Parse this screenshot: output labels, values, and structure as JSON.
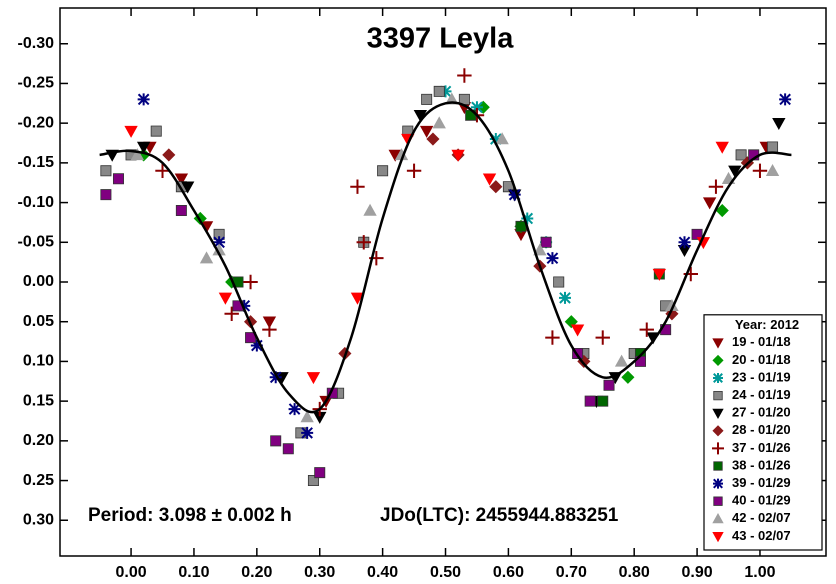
{
  "chart_data": {
    "type": "scatter",
    "title": "3397 Leyla",
    "annotations": [
      "Period: 3.098 ± 0.002 h",
      "JDo(LTC): 2455944.883251"
    ],
    "legend_title": "Year: 2012",
    "legend_position": "lower right",
    "xlim": [
      -0.113,
      1.105
    ],
    "ylim": [
      -0.345,
      0.345
    ],
    "y_inverted": true,
    "xticks": [
      {
        "value": 0,
        "label": "0.00"
      },
      {
        "value": 0.1,
        "label": "0.10"
      },
      {
        "value": 0.2,
        "label": "0.20"
      },
      {
        "value": 0.3,
        "label": "0.30"
      },
      {
        "value": 0.4,
        "label": "0.40"
      },
      {
        "value": 0.5,
        "label": "0.50"
      },
      {
        "value": 0.6,
        "label": "0.60"
      },
      {
        "value": 0.7,
        "label": "0.70"
      },
      {
        "value": 0.8,
        "label": "0.80"
      },
      {
        "value": 0.9,
        "label": "0.90"
      },
      {
        "value": 1,
        "label": "1.00"
      }
    ],
    "yticks": [
      {
        "value": -0.3,
        "label": "-0.30"
      },
      {
        "value": -0.25,
        "label": "-0.25"
      },
      {
        "value": -0.2,
        "label": "-0.20"
      },
      {
        "value": -0.15,
        "label": "-0.15"
      },
      {
        "value": -0.1,
        "label": "-0.10"
      },
      {
        "value": -0.05,
        "label": "-0.05"
      },
      {
        "value": 0,
        "label": "0.00"
      },
      {
        "value": 0.05,
        "label": "0.05"
      },
      {
        "value": 0.1,
        "label": "0.10"
      },
      {
        "value": 0.15,
        "label": "0.15"
      },
      {
        "value": 0.2,
        "label": "0.20"
      },
      {
        "value": 0.25,
        "label": "0.25"
      },
      {
        "value": 0.3,
        "label": "0.30"
      }
    ],
    "fit": {
      "color": "#000000",
      "x": [
        -0.05,
        0,
        0.05,
        0.1,
        0.15,
        0.2,
        0.25,
        0.3,
        0.35,
        0.4,
        0.45,
        0.5,
        0.55,
        0.6,
        0.65,
        0.7,
        0.75,
        0.8,
        0.85,
        0.9,
        0.95,
        1,
        1.05
      ],
      "values": [
        -0.16,
        -0.165,
        -0.15,
        -0.09,
        -0.02,
        0.07,
        0.14,
        0.16,
        0.07,
        -0.08,
        -0.19,
        -0.225,
        -0.21,
        -0.14,
        -0.02,
        0.08,
        0.12,
        0.1,
        0.05,
        -0.04,
        -0.12,
        -0.16,
        -0.16
      ]
    },
    "series": [
      {
        "name": "19 - 01/18",
        "marker": "triangle-down",
        "color": "#8b0000",
        "x": [
          0.03,
          0.08,
          0.12,
          0.22,
          0.31,
          0.42,
          0.47,
          0.53,
          0.62,
          0.92,
          1.01
        ],
        "values": [
          -0.17,
          -0.13,
          -0.07,
          0.05,
          0.15,
          -0.16,
          -0.19,
          -0.22,
          -0.06,
          -0.1,
          -0.17
        ]
      },
      {
        "name": "20 - 01/18",
        "marker": "diamond",
        "color": "#009900",
        "x": [
          0.02,
          0.11,
          0.16,
          0.56,
          0.62,
          0.7,
          0.79,
          0.94,
          0.98
        ],
        "values": [
          -0.16,
          -0.08,
          0,
          -0.22,
          -0.07,
          0.05,
          0.12,
          -0.09,
          -0.15
        ]
      },
      {
        "name": "23 - 01/19",
        "marker": "asterisk",
        "color": "#009999",
        "x": [
          0.5,
          0.55,
          0.58,
          0.63,
          0.66,
          0.69
        ],
        "values": [
          -0.24,
          -0.22,
          -0.18,
          -0.08,
          -0.05,
          0.02
        ]
      },
      {
        "name": "24 - 01/19",
        "marker": "square",
        "color": "#888888",
        "x": [
          -0.04,
          0,
          0.04,
          0.08,
          0.14,
          0.27,
          0.29,
          0.33,
          0.37,
          0.4,
          0.44,
          0.47,
          0.49,
          0.53,
          0.6,
          0.68,
          0.72,
          0.8,
          0.85,
          0.97,
          1.02
        ],
        "values": [
          -0.14,
          -0.16,
          -0.19,
          -0.12,
          -0.06,
          0.19,
          0.25,
          0.14,
          -0.05,
          -0.14,
          -0.19,
          -0.23,
          -0.24,
          -0.23,
          -0.12,
          0,
          0.09,
          0.09,
          0.03,
          -0.16,
          -0.17
        ]
      },
      {
        "name": "27 - 01/20",
        "marker": "triangle-down",
        "color": "#000000",
        "x": [
          -0.03,
          0.02,
          0.09,
          0.24,
          0.3,
          0.46,
          0.61,
          0.74,
          0.77,
          0.83,
          0.88,
          0.96,
          1.03
        ],
        "values": [
          -0.16,
          -0.17,
          -0.12,
          0.12,
          0.17,
          -0.21,
          -0.11,
          0.15,
          0.12,
          0.07,
          -0.04,
          -0.14,
          -0.2
        ]
      },
      {
        "name": "28 - 01/20",
        "marker": "diamond",
        "color": "#8b1a1a",
        "x": [
          0.06,
          0.19,
          0.34,
          0.48,
          0.52,
          0.58,
          0.65,
          0.72,
          0.86,
          0.98
        ],
        "values": [
          -0.16,
          0.05,
          0.09,
          -0.18,
          -0.16,
          -0.12,
          -0.02,
          0.1,
          0.04,
          -0.15
        ]
      },
      {
        "name": "37 - 01/26",
        "marker": "plus",
        "color": "#8b0000",
        "x": [
          0.05,
          0.16,
          0.19,
          0.22,
          0.3,
          0.36,
          0.37,
          0.39,
          0.45,
          0.53,
          0.55,
          0.67,
          0.75,
          0.82,
          0.89,
          0.93,
          1
        ],
        "values": [
          -0.14,
          0.04,
          0,
          0.06,
          0.16,
          -0.12,
          -0.05,
          -0.03,
          -0.14,
          -0.26,
          -0.21,
          0.07,
          0.07,
          0.06,
          -0.01,
          -0.12,
          -0.14
        ]
      },
      {
        "name": "38 - 01/26",
        "marker": "square",
        "color": "#006600",
        "x": [
          0.17,
          0.54,
          0.62,
          0.75,
          0.81,
          0.84
        ],
        "values": [
          0,
          -0.21,
          -0.07,
          0.15,
          0.09,
          -0.01
        ]
      },
      {
        "name": "39 - 01/29",
        "marker": "asterisk",
        "color": "#000080",
        "x": [
          0.02,
          0.14,
          0.18,
          0.2,
          0.23,
          0.26,
          0.28,
          0.61,
          0.67,
          0.88,
          1.04
        ],
        "values": [
          -0.23,
          -0.05,
          0.03,
          0.08,
          0.12,
          0.16,
          0.19,
          -0.11,
          -0.03,
          -0.05,
          -0.23
        ]
      },
      {
        "name": "40 - 01/29",
        "marker": "square",
        "color": "#800080",
        "x": [
          -0.04,
          -0.02,
          0.08,
          0.17,
          0.19,
          0.23,
          0.25,
          0.3,
          0.32,
          0.66,
          0.71,
          0.73,
          0.76,
          0.81,
          0.85,
          0.9,
          0.99
        ],
        "values": [
          -0.11,
          -0.13,
          -0.09,
          0.03,
          0.07,
          0.2,
          0.21,
          0.24,
          0.14,
          -0.05,
          0.09,
          0.15,
          0.13,
          0.1,
          0.06,
          -0.06,
          -0.16
        ]
      },
      {
        "name": "42 - 02/07",
        "marker": "triangle-up",
        "color": "#a0a0a0",
        "x": [
          0.01,
          0.12,
          0.14,
          0.28,
          0.38,
          0.43,
          0.49,
          0.51,
          0.59,
          0.65,
          0.78,
          0.86,
          0.95,
          1.02
        ],
        "values": [
          -0.16,
          -0.03,
          -0.04,
          0.17,
          -0.09,
          -0.16,
          -0.2,
          -0.23,
          -0.18,
          -0.04,
          0.1,
          0.03,
          -0.13,
          -0.14
        ]
      },
      {
        "name": "43 - 02/07",
        "marker": "triangle-down",
        "color": "#ff0000",
        "x": [
          0,
          0.15,
          0.29,
          0.36,
          0.44,
          0.52,
          0.57,
          0.71,
          0.84,
          0.91,
          0.94
        ],
        "values": [
          -0.19,
          0.02,
          0.12,
          0.02,
          -0.18,
          -0.16,
          -0.13,
          0.06,
          -0.01,
          -0.05,
          -0.17
        ]
      }
    ]
  }
}
